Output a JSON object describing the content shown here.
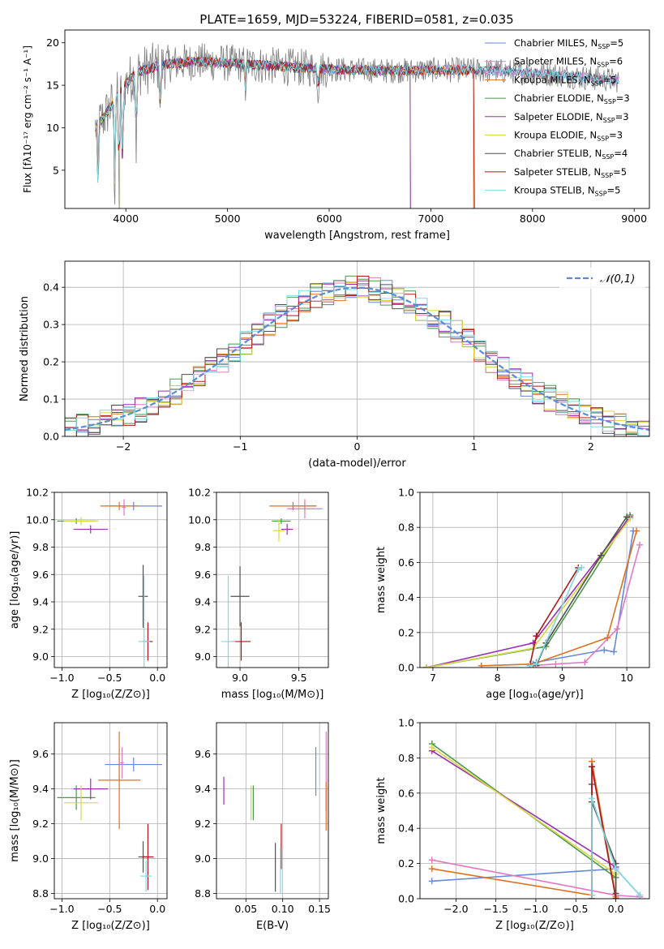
{
  "figure_title": "PLATE=1659, MJD=53224, FIBERID=0581, z=0.035",
  "legend_models": [
    {
      "name": "Chabrier MILES, N",
      "nssp": "5",
      "color": "#6688dd"
    },
    {
      "name": "Salpeter MILES, N",
      "nssp": "6",
      "color": "#e377c2"
    },
    {
      "name": "Kroupa MILES, N",
      "nssp": "5",
      "color": "#e07020"
    },
    {
      "name": "Chabrier ELODIE, N",
      "nssp": "3",
      "color": "#4a9a4a"
    },
    {
      "name": "Salpeter ELODIE, N",
      "nssp": "3",
      "color": "#9a30b0"
    },
    {
      "name": "Kroupa ELODIE, N",
      "nssp": "3",
      "color": "#d8d840"
    },
    {
      "name": "Chabrier STELIB, N",
      "nssp": "4",
      "color": "#505050"
    },
    {
      "name": "Salpeter STELIB, N",
      "nssp": "5",
      "color": "#b01818"
    },
    {
      "name": "Kroupa STELIB, N",
      "nssp": "5",
      "color": "#80d8e0"
    }
  ],
  "legend_sub": "SSP",
  "chart_data": [
    {
      "id": "spectrum",
      "type": "line",
      "xlabel": "wavelength [Angstrom, rest frame]",
      "ylabel": "Flux [fλ10⁻¹⁷ erg cm⁻² s⁻¹ A⁻¹]",
      "xlim": [
        3400,
        9150
      ],
      "ylim": [
        0.5,
        21.5
      ],
      "xticks": [
        "4000",
        "5000",
        "6000",
        "7000",
        "8000",
        "9000"
      ],
      "yticks": [
        "5",
        "10",
        "15",
        "20"
      ],
      "continuum_x": [
        3700,
        3800,
        3950,
        4100,
        4400,
        4700,
        5000,
        5400,
        5800,
        6200,
        6600,
        7000,
        7400,
        7800,
        8200,
        8600,
        8800
      ],
      "continuum_y": [
        10,
        11.5,
        14.5,
        16.5,
        17.5,
        17.8,
        17.6,
        17.3,
        17.0,
        16.8,
        16.7,
        16.8,
        16.8,
        16.6,
        16.3,
        15.8,
        15.6
      ],
      "absorption_lines": [
        [
          3727,
          8
        ],
        [
          3890,
          11
        ],
        [
          3934,
          12
        ],
        [
          3968,
          11
        ],
        [
          4102,
          9
        ],
        [
          4340,
          6
        ],
        [
          5175,
          3
        ],
        [
          5890,
          3
        ]
      ]
    },
    {
      "id": "residual_hist",
      "type": "step",
      "xlabel": "(data-model)/error",
      "ylabel": "Normed distribution",
      "xlim": [
        -2.5,
        2.5
      ],
      "ylim": [
        0,
        0.47
      ],
      "xticks": [
        "−2",
        "−1",
        "0",
        "1",
        "2"
      ],
      "yticks": [
        "0.0",
        "0.1",
        "0.2",
        "0.3",
        "0.4"
      ],
      "gaussian_label": "𝒩(0,1)",
      "gaussian_color": "#5a8ad8"
    },
    {
      "id": "age_vs_Z",
      "type": "scatter_errorbar",
      "xlabel": "Z [log₁₀(Z/Z⊙)]",
      "ylabel": "age  [log₁₀(age/yr)]",
      "xlim": [
        -1.08,
        0.1
      ],
      "ylim": [
        8.92,
        10.2
      ],
      "xticks": [
        "−1.0",
        "−0.5",
        "0.0"
      ],
      "yticks": [
        "9.0",
        "9.2",
        "9.4",
        "9.6",
        "9.8",
        "10.0",
        "10.2"
      ],
      "points": [
        {
          "x": -0.25,
          "xerr": 0.3,
          "y": 10.1,
          "yerr": 0.03
        },
        {
          "x": -0.35,
          "xerr": 0.02,
          "y": 10.09,
          "yerr": 0.06
        },
        {
          "x": -0.4,
          "xerr": 0.2,
          "y": 10.1,
          "yerr": 0.03
        },
        {
          "x": -0.85,
          "xerr": 0.2,
          "y": 9.99,
          "yerr": 0.02
        },
        {
          "x": -0.7,
          "xerr": 0.18,
          "y": 9.93,
          "yerr": 0.03
        },
        {
          "x": -0.8,
          "xerr": 0.18,
          "y": 9.99,
          "yerr": 0.03
        },
        {
          "x": -0.15,
          "xerr": 0.05,
          "y": 9.44,
          "yerr": 0.23
        },
        {
          "x": -0.1,
          "xerr": 0.05,
          "y": 9.11,
          "yerr": 0.14
        },
        {
          "x": -0.14,
          "xerr": 0.06,
          "y": 9.11,
          "yerr": 0.48
        }
      ]
    },
    {
      "id": "age_vs_mass",
      "type": "scatter_errorbar",
      "xlabel": "mass [log₁₀(M/M⊙)]",
      "ylabel": "",
      "xlim": [
        8.8,
        9.75
      ],
      "ylim": [
        8.92,
        10.2
      ],
      "xticks": [
        "9.0",
        "9.5"
      ],
      "yticks": [
        "9.0",
        "9.2",
        "9.4",
        "9.6",
        "9.8",
        "10.0",
        "10.2"
      ],
      "points": [
        {
          "x": 9.55,
          "xerr": 0.1,
          "y": 10.1,
          "yerr": 0.03
        },
        {
          "x": 9.55,
          "xerr": 0.15,
          "y": 10.08,
          "yerr": 0.07
        },
        {
          "x": 9.45,
          "xerr": 0.2,
          "y": 10.1,
          "yerr": 0.03
        },
        {
          "x": 9.35,
          "xerr": 0.08,
          "y": 9.99,
          "yerr": 0.02
        },
        {
          "x": 9.4,
          "xerr": 0.05,
          "y": 9.93,
          "yerr": 0.04
        },
        {
          "x": 9.33,
          "xerr": 0.05,
          "y": 9.92,
          "yerr": 0.08
        },
        {
          "x": 9.0,
          "xerr": 0.08,
          "y": 9.44,
          "yerr": 0.22
        },
        {
          "x": 9.01,
          "xerr": 0.08,
          "y": 9.11,
          "yerr": 0.14
        },
        {
          "x": 8.9,
          "xerr": 0.06,
          "y": 9.11,
          "yerr": 0.48
        }
      ]
    },
    {
      "id": "weight_vs_age",
      "type": "line",
      "xlabel": "age  [log₁₀(age/yr)]",
      "ylabel": "mass weight",
      "xlim": [
        6.8,
        10.35
      ],
      "ylim": [
        0,
        1
      ],
      "xticks": [
        "7",
        "8",
        "9",
        "10"
      ],
      "yticks": [
        "0.0",
        "0.2",
        "0.4",
        "0.6",
        "0.8",
        "1.0"
      ],
      "series": [
        {
          "x": [
            8.5,
            8.6,
            9.65,
            9.8,
            10.1
          ],
          "y": [
            0.02,
            0.03,
            0.1,
            0.09,
            0.78
          ]
        },
        {
          "x": [
            8.5,
            8.9,
            9.35,
            9.85,
            10.2
          ],
          "y": [
            0.01,
            0.02,
            0.03,
            0.22,
            0.7
          ]
        },
        {
          "x": [
            7.75,
            8.55,
            9.7,
            10.15
          ],
          "y": [
            0.01,
            0.02,
            0.17,
            0.78
          ]
        },
        {
          "x": [
            6.9,
            8.75,
            10.05
          ],
          "y": [
            0.0,
            0.12,
            0.87
          ]
        },
        {
          "x": [
            6.9,
            8.55,
            10.05
          ],
          "y": [
            0.0,
            0.14,
            0.86
          ]
        },
        {
          "x": [
            6.9,
            8.55,
            10.05
          ],
          "y": [
            0.0,
            0.11,
            0.85
          ]
        },
        {
          "x": [
            8.6,
            8.75,
            9.6,
            10.0
          ],
          "y": [
            0.01,
            0.14,
            0.64,
            0.86
          ]
        },
        {
          "x": [
            8.5,
            8.6,
            9.25
          ],
          "y": [
            0.01,
            0.18,
            0.57
          ]
        },
        {
          "x": [
            8.5,
            8.6,
            9.25,
            9.3
          ],
          "y": [
            0.01,
            0.02,
            0.56,
            0.57
          ]
        }
      ]
    },
    {
      "id": "mass_vs_Z",
      "type": "scatter_errorbar",
      "xlabel": "Z [log₁₀(Z/Z⊙)]",
      "ylabel": "mass [log₁₀(M/M⊙)]",
      "xlim": [
        -1.08,
        0.1
      ],
      "ylim": [
        8.77,
        9.78
      ],
      "xticks": [
        "−1.0",
        "−0.5",
        "0.0"
      ],
      "yticks": [
        "8.8",
        "9.0",
        "9.2",
        "9.4",
        "9.6"
      ],
      "points": [
        {
          "x": -0.25,
          "xerr": 0.3,
          "y": 9.54,
          "yerr": 0.04
        },
        {
          "x": -0.37,
          "xerr": 0.02,
          "y": 9.55,
          "yerr": 0.09
        },
        {
          "x": -0.4,
          "xerr": 0.22,
          "y": 9.45,
          "yerr": 0.28
        },
        {
          "x": -0.85,
          "xerr": 0.2,
          "y": 9.35,
          "yerr": 0.07
        },
        {
          "x": -0.7,
          "xerr": 0.18,
          "y": 9.4,
          "yerr": 0.06
        },
        {
          "x": -0.8,
          "xerr": 0.18,
          "y": 9.32,
          "yerr": 0.1
        },
        {
          "x": -0.15,
          "xerr": 0.05,
          "y": 9.01,
          "yerr": 0.09
        },
        {
          "x": -0.1,
          "xerr": 0.06,
          "y": 9.01,
          "yerr": 0.19
        },
        {
          "x": -0.12,
          "xerr": 0.06,
          "y": 8.9,
          "yerr": 0.09
        }
      ]
    },
    {
      "id": "mass_vs_EBV",
      "type": "scatter_errorbar",
      "xlabel": "E(B-V)",
      "ylabel": "",
      "xlim": [
        0.01,
        0.162
      ],
      "ylim": [
        8.77,
        9.78
      ],
      "xticks": [
        "0.05",
        "0.10",
        "0.15"
      ],
      "yticks": [
        "8.8",
        "9.0",
        "9.2",
        "9.4",
        "9.6"
      ],
      "points": [
        {
          "x": 0.145,
          "xerr": 0,
          "y": 9.5,
          "yerr": 0.14
        },
        {
          "x": 0.159,
          "xerr": 0,
          "y": 9.5,
          "yerr": 0.23
        },
        {
          "x": 0.159,
          "xerr": 0,
          "y": 9.3,
          "yerr": 0.14
        },
        {
          "x": 0.06,
          "xerr": 0,
          "y": 9.32,
          "yerr": 0.1
        },
        {
          "x": 0.02,
          "xerr": 0,
          "y": 9.39,
          "yerr": 0.08
        },
        {
          "x": 0.057,
          "xerr": 0,
          "y": 9.32,
          "yerr": 0.1
        },
        {
          "x": 0.09,
          "xerr": 0,
          "y": 8.95,
          "yerr": 0.14
        },
        {
          "x": 0.098,
          "xerr": 0,
          "y": 9.07,
          "yerr": 0.13
        },
        {
          "x": 0.097,
          "xerr": 0,
          "y": 8.93,
          "yerr": 0.13
        }
      ]
    },
    {
      "id": "weight_vs_Z",
      "type": "line",
      "xlabel": "Z [log₁₀(Z/Z⊙)]",
      "ylabel": "mass weight",
      "xlim": [
        -2.45,
        0.42
      ],
      "ylim": [
        0,
        1
      ],
      "xticks": [
        "−2.0",
        "−1.5",
        "−1.0",
        "−0.5",
        "0.0"
      ],
      "yticks": [
        "0.0",
        "0.2",
        "0.4",
        "0.6",
        "0.8",
        "1.0"
      ],
      "series": [
        {
          "x": [
            -2.3,
            0,
            0.3
          ],
          "y": [
            0.1,
            0.17,
            0.02
          ]
        },
        {
          "x": [
            -2.3,
            0,
            0.3
          ],
          "y": [
            0.22,
            0.02,
            0.01
          ]
        },
        {
          "x": [
            -2.3,
            -0.3,
            -0.3,
            0
          ],
          "y": [
            0.17,
            0.02,
            0.78,
            0.01
          ]
        },
        {
          "x": [
            -2.3,
            0,
            0
          ],
          "y": [
            0.88,
            0.12,
            0.0
          ]
        },
        {
          "x": [
            -2.3,
            0,
            0
          ],
          "y": [
            0.84,
            0.18,
            0.0
          ]
        },
        {
          "x": [
            -2.3,
            0,
            0
          ],
          "y": [
            0.86,
            0.14,
            0.0
          ]
        },
        {
          "x": [
            -0.3,
            -0.3,
            0,
            0
          ],
          "y": [
            0.65,
            0.55,
            0.2,
            0.03
          ]
        },
        {
          "x": [
            -0.3,
            -0.3,
            0
          ],
          "y": [
            0.0,
            0.75,
            0.0
          ]
        },
        {
          "x": [
            -0.3,
            -0.3,
            0,
            0.3
          ],
          "y": [
            0.02,
            0.57,
            0.17,
            0.02
          ]
        }
      ]
    }
  ]
}
